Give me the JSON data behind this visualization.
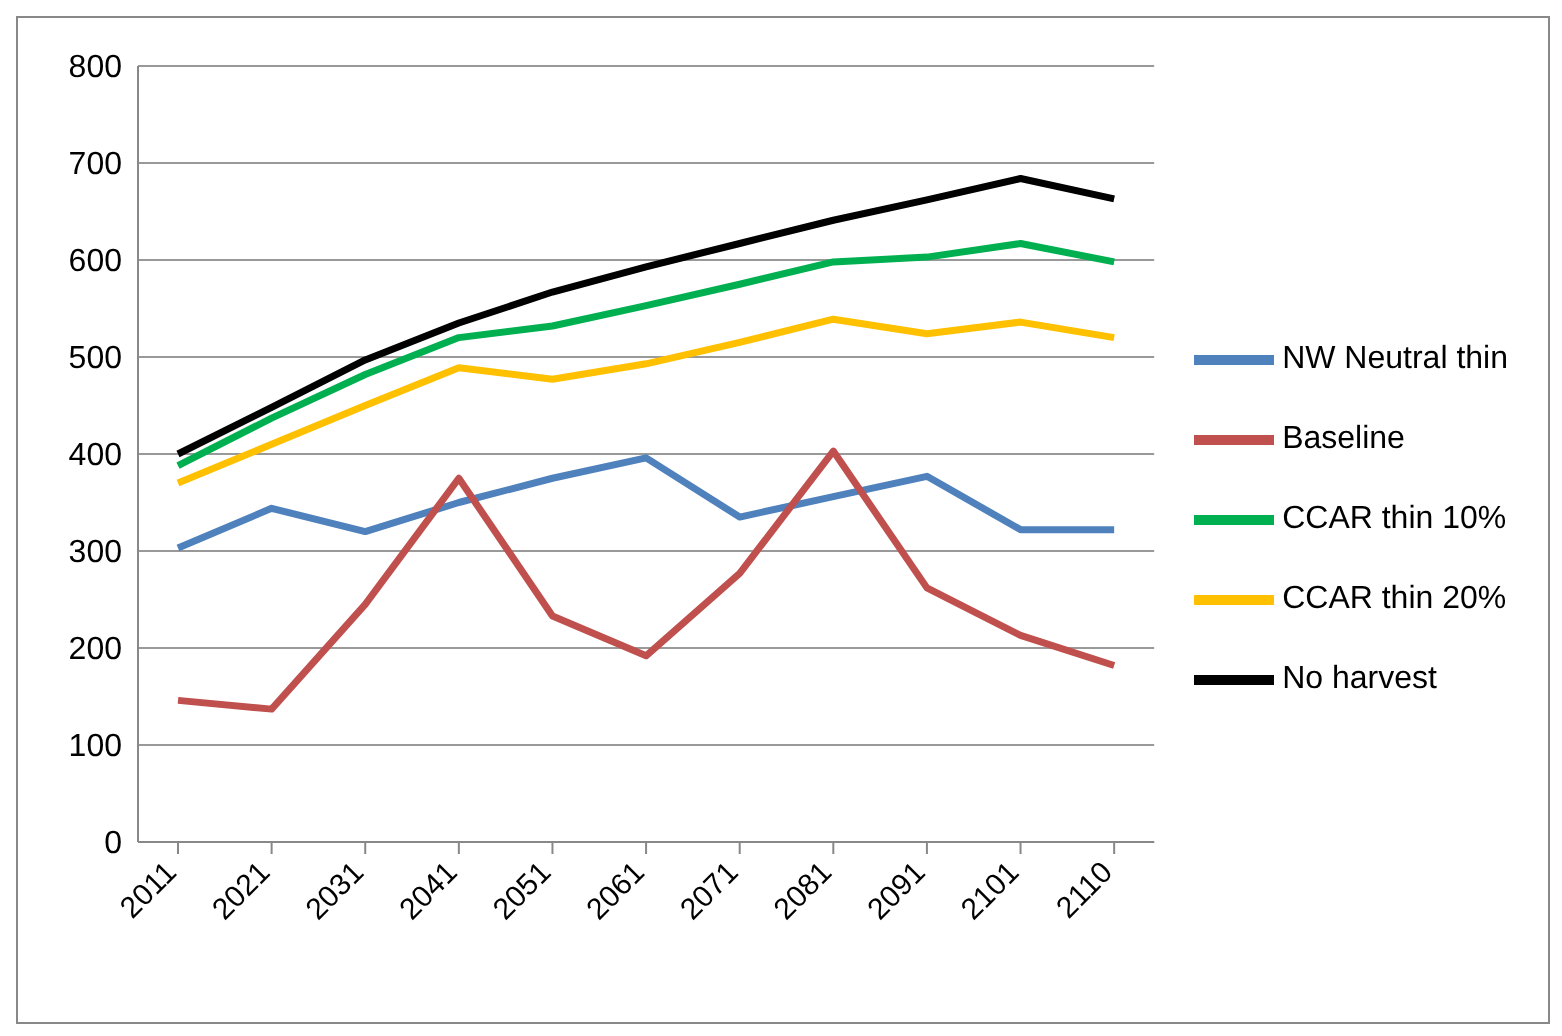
{
  "chart_data": {
    "type": "line",
    "categories": [
      "2011",
      "2021",
      "2031",
      "2041",
      "2051",
      "2061",
      "2071",
      "2081",
      "2091",
      "2101",
      "2110"
    ],
    "series": [
      {
        "name": "NW Neutral thin",
        "color": "#4f81bd",
        "values": [
          303,
          344,
          320,
          350,
          375,
          396,
          335,
          356,
          377,
          322,
          322
        ]
      },
      {
        "name": "Baseline",
        "color": "#c0504d",
        "values": [
          146,
          137,
          245,
          375,
          233,
          192,
          277,
          403,
          262,
          213,
          182
        ]
      },
      {
        "name": "CCAR thin 10%",
        "color": "#00b050",
        "values": [
          388,
          437,
          482,
          520,
          532,
          553,
          575,
          598,
          603,
          617,
          598
        ]
      },
      {
        "name": "CCAR thin 20%",
        "color": "#ffc000",
        "values": [
          370,
          410,
          450,
          489,
          477,
          493,
          515,
          539,
          524,
          536,
          520
        ]
      },
      {
        "name": "No harvest",
        "color": "#000000",
        "values": [
          400,
          448,
          497,
          535,
          567,
          593,
          617,
          641,
          662,
          684,
          663
        ]
      }
    ],
    "ylim": [
      0,
      800
    ],
    "yticks": [
      0,
      100,
      200,
      300,
      400,
      500,
      600,
      700,
      800
    ],
    "grid": "y",
    "legend": "right",
    "marker": "none",
    "line_style": "solid"
  }
}
